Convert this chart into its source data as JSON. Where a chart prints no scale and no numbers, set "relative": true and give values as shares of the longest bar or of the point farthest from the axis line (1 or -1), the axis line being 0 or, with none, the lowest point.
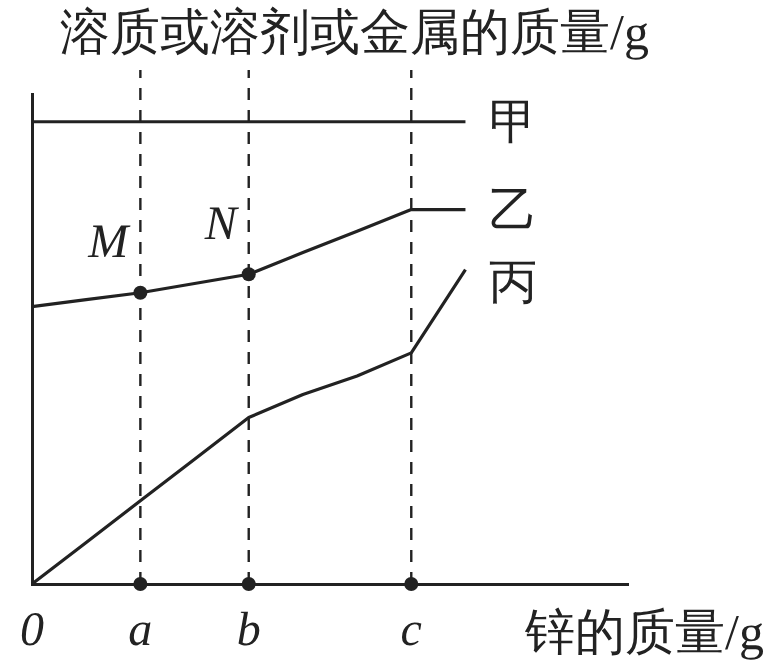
{
  "chart_data": {
    "type": "line",
    "relative": true,
    "xlabel": "锌的质量/g",
    "ylabel": "溶质或溶剂或金属的质量/g",
    "categories": [
      "0",
      null,
      "a",
      null,
      "b",
      null,
      null,
      "c",
      null,
      null,
      null,
      null
    ],
    "series": [
      {
        "name": "甲",
        "color": "#222222",
        "values": [
          1,
          1,
          1,
          1,
          1,
          1,
          1,
          1,
          1,
          null,
          null,
          null
        ]
      },
      {
        "name": "乙",
        "color": "#222222",
        "values": [
          0.6,
          0.615,
          0.63,
          0.65,
          0.67,
          0.717,
          0.763,
          0.81,
          0.81,
          null,
          null,
          null
        ]
      },
      {
        "name": "丙",
        "color": "#222222",
        "values": [
          0,
          0.09,
          0.18,
          0.27,
          0.36,
          0.41,
          0.45,
          0.5,
          0.68,
          null,
          null,
          null
        ]
      },
      {
        "type": "scatter",
        "marker": "circle",
        "color": "#222222",
        "x": [
          "a",
          "b",
          "c"
        ],
        "values": [
          0,
          0,
          0
        ]
      }
    ],
    "ref_lines": [
      {
        "axis": "x",
        "value": "a",
        "line_style": "dashed",
        "color": "#222222"
      },
      {
        "axis": "x",
        "value": "b",
        "line_style": "dashed",
        "color": "#222222"
      },
      {
        "axis": "x",
        "value": "c",
        "line_style": "dashed",
        "color": "#222222"
      }
    ],
    "annotations": [
      {
        "text": "M",
        "x": "a",
        "y": 0.63
      },
      {
        "text": "N",
        "x": "b",
        "y": 0.67
      }
    ],
    "marker": "none",
    "line_style": "solid",
    "grid": false,
    "legend": false
  }
}
